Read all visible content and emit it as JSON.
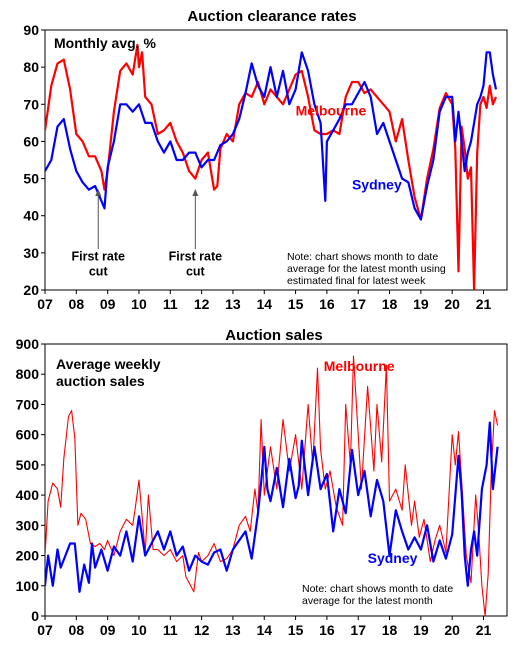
{
  "colors": {
    "melbourne": "#ff0000",
    "sydney": "#0000ff",
    "arrow": "#555555"
  },
  "chart_data": [
    {
      "type": "line",
      "title": "Auction clearance rates",
      "subtitle": "Monthly avg, %",
      "x_tick_labels": [
        "07",
        "08",
        "09",
        "10",
        "11",
        "12",
        "13",
        "14",
        "15",
        "16",
        "17",
        "18",
        "19",
        "20",
        "21"
      ],
      "ylim": [
        20,
        90
      ],
      "y_ticks": [
        20,
        30,
        40,
        50,
        60,
        70,
        80,
        90
      ],
      "grid": false,
      "note": [
        "Note: chart shows month to date",
        "average for the latest month using",
        "estimated final for latest week"
      ],
      "annotations": [
        {
          "lines": [
            "First rate",
            "cut"
          ],
          "x": 2008.7,
          "y": 48
        },
        {
          "lines": [
            "First rate",
            "cut"
          ],
          "x": 2011.8,
          "y": 48
        }
      ],
      "series": [
        {
          "name": "Melbourne",
          "x": [
            2007.0,
            2007.2,
            2007.4,
            2007.6,
            2007.8,
            2008.0,
            2008.2,
            2008.4,
            2008.6,
            2008.8,
            2008.9,
            2009.0,
            2009.2,
            2009.4,
            2009.6,
            2009.8,
            2009.95,
            2010.0,
            2010.1,
            2010.2,
            2010.4,
            2010.6,
            2010.8,
            2011.0,
            2011.2,
            2011.4,
            2011.6,
            2011.8,
            2012.0,
            2012.2,
            2012.4,
            2012.5,
            2012.6,
            2012.8,
            2013.0,
            2013.2,
            2013.4,
            2013.6,
            2013.8,
            2014.0,
            2014.2,
            2014.4,
            2014.6,
            2014.8,
            2015.0,
            2015.2,
            2015.4,
            2015.6,
            2015.8,
            2016.0,
            2016.2,
            2016.4,
            2016.6,
            2016.8,
            2017.0,
            2017.2,
            2017.4,
            2017.6,
            2017.8,
            2018.0,
            2018.2,
            2018.4,
            2018.6,
            2018.8,
            2019.0,
            2019.2,
            2019.4,
            2019.6,
            2019.8,
            2020.0,
            2020.1,
            2020.2,
            2020.3,
            2020.4,
            2020.5,
            2020.6,
            2020.7,
            2020.8,
            2020.9,
            2021.0,
            2021.1,
            2021.2,
            2021.3,
            2021.4
          ],
          "values": [
            63,
            75,
            81,
            82,
            74,
            62,
            60,
            56,
            56,
            52,
            47,
            52,
            68,
            79,
            81,
            78,
            86,
            80,
            84,
            72,
            70,
            62,
            63,
            65,
            60,
            57,
            52,
            50,
            55,
            57,
            47,
            48,
            58,
            62,
            60,
            70,
            73,
            72,
            76,
            70,
            74,
            72,
            70,
            74,
            78,
            79,
            72,
            63,
            62,
            62,
            63,
            62,
            72,
            76,
            76,
            73,
            74,
            72,
            70,
            68,
            60,
            66,
            55,
            45,
            39,
            50,
            58,
            69,
            73,
            70,
            58,
            25,
            64,
            58,
            50,
            53,
            20,
            57,
            70,
            72,
            69,
            75,
            70,
            72
          ]
        },
        {
          "name": "Sydney",
          "x": [
            2007.0,
            2007.2,
            2007.4,
            2007.6,
            2007.8,
            2008.0,
            2008.2,
            2008.4,
            2008.6,
            2008.8,
            2008.9,
            2009.0,
            2009.2,
            2009.4,
            2009.6,
            2009.8,
            2010.0,
            2010.2,
            2010.4,
            2010.6,
            2010.8,
            2011.0,
            2011.2,
            2011.4,
            2011.6,
            2011.8,
            2012.0,
            2012.2,
            2012.4,
            2012.6,
            2012.8,
            2013.0,
            2013.2,
            2013.4,
            2013.6,
            2013.8,
            2014.0,
            2014.2,
            2014.4,
            2014.6,
            2014.8,
            2015.0,
            2015.2,
            2015.4,
            2015.6,
            2015.8,
            2015.95,
            2016.0,
            2016.2,
            2016.4,
            2016.6,
            2016.8,
            2017.0,
            2017.2,
            2017.4,
            2017.6,
            2017.8,
            2018.0,
            2018.2,
            2018.4,
            2018.6,
            2018.8,
            2019.0,
            2019.2,
            2019.4,
            2019.6,
            2019.8,
            2020.0,
            2020.1,
            2020.2,
            2020.3,
            2020.4,
            2020.5,
            2020.6,
            2020.7,
            2020.8,
            2020.9,
            2021.0,
            2021.1,
            2021.2,
            2021.3,
            2021.4
          ],
          "values": [
            52,
            55,
            64,
            66,
            58,
            52,
            49,
            47,
            48,
            44,
            42,
            53,
            60,
            70,
            70,
            68,
            70,
            65,
            65,
            60,
            57,
            60,
            55,
            55,
            57,
            57,
            53,
            55,
            55,
            59,
            60,
            62,
            66,
            73,
            81,
            75,
            72,
            80,
            72,
            79,
            70,
            74,
            84,
            79,
            70,
            65,
            44,
            60,
            63,
            66,
            70,
            70,
            73,
            76,
            72,
            62,
            65,
            60,
            55,
            50,
            49,
            42,
            39,
            48,
            55,
            68,
            72,
            72,
            60,
            68,
            60,
            52,
            57,
            60,
            65,
            70,
            72,
            75,
            84,
            84,
            78,
            74
          ]
        }
      ],
      "series_labels": [
        {
          "name": "Melbourne",
          "x": 2015.0,
          "y": 67
        },
        {
          "name": "Sydney",
          "x": 2016.8,
          "y": 47
        }
      ]
    },
    {
      "type": "line",
      "title": "Auction sales",
      "subtitle_lines": [
        "Average weekly",
        "auction sales"
      ],
      "x_tick_labels": [
        "07",
        "08",
        "09",
        "10",
        "11",
        "12",
        "13",
        "14",
        "15",
        "16",
        "17",
        "18",
        "19",
        "20",
        "21"
      ],
      "ylim": [
        0,
        900
      ],
      "y_ticks": [
        0,
        100,
        200,
        300,
        400,
        500,
        600,
        700,
        800,
        900
      ],
      "grid": false,
      "note": [
        "Note: chart shows month to date",
        "average for the latest month"
      ],
      "series": [
        {
          "name": "Melbourne",
          "x": [
            2007.0,
            2007.1,
            2007.25,
            2007.4,
            2007.5,
            2007.6,
            2007.75,
            2007.85,
            2007.95,
            2008.05,
            2008.15,
            2008.3,
            2008.45,
            2008.6,
            2008.75,
            2008.9,
            2009.0,
            2009.2,
            2009.4,
            2009.6,
            2009.8,
            2009.9,
            2010.0,
            2010.2,
            2010.3,
            2010.45,
            2010.6,
            2010.8,
            2011.0,
            2011.2,
            2011.4,
            2011.5,
            2011.6,
            2011.75,
            2011.9,
            2012.0,
            2012.2,
            2012.4,
            2012.6,
            2012.8,
            2013.0,
            2013.2,
            2013.4,
            2013.55,
            2013.7,
            2013.8,
            2013.9,
            2014.0,
            2014.2,
            2014.4,
            2014.6,
            2014.8,
            2015.0,
            2015.2,
            2015.4,
            2015.55,
            2015.7,
            2015.8,
            2015.95,
            2016.1,
            2016.3,
            2016.5,
            2016.6,
            2016.75,
            2016.85,
            2017.0,
            2017.1,
            2017.3,
            2017.5,
            2017.6,
            2017.75,
            2017.9,
            2018.0,
            2018.2,
            2018.4,
            2018.5,
            2018.7,
            2018.8,
            2018.95,
            2019.1,
            2019.3,
            2019.45,
            2019.6,
            2019.8,
            2020.0,
            2020.1,
            2020.2,
            2020.3,
            2020.45,
            2020.6,
            2020.75,
            2020.85,
            2020.95,
            2021.05,
            2021.15,
            2021.25,
            2021.35,
            2021.45
          ],
          "values": [
            200,
            380,
            440,
            420,
            360,
            520,
            660,
            680,
            590,
            300,
            340,
            320,
            240,
            230,
            240,
            220,
            250,
            200,
            280,
            320,
            300,
            370,
            450,
            210,
            400,
            220,
            220,
            200,
            220,
            180,
            200,
            130,
            110,
            80,
            210,
            180,
            200,
            240,
            180,
            190,
            220,
            300,
            330,
            280,
            420,
            340,
            650,
            400,
            560,
            420,
            650,
            480,
            600,
            420,
            700,
            500,
            820,
            550,
            420,
            480,
            360,
            300,
            700,
            500,
            860,
            600,
            420,
            760,
            480,
            700,
            510,
            830,
            380,
            420,
            350,
            500,
            300,
            380,
            260,
            320,
            180,
            250,
            300,
            210,
            600,
            500,
            610,
            450,
            200,
            110,
            400,
            270,
            100,
            0,
            140,
            480,
            680,
            630
          ]
        },
        {
          "name": "Sydney",
          "x": [
            2007.0,
            2007.1,
            2007.25,
            2007.4,
            2007.5,
            2007.65,
            2007.8,
            2007.95,
            2008.1,
            2008.25,
            2008.4,
            2008.5,
            2008.6,
            2008.8,
            2009.0,
            2009.2,
            2009.4,
            2009.6,
            2009.8,
            2010.0,
            2010.2,
            2010.4,
            2010.6,
            2010.8,
            2011.0,
            2011.2,
            2011.4,
            2011.6,
            2011.8,
            2012.0,
            2012.2,
            2012.4,
            2012.6,
            2012.8,
            2013.0,
            2013.2,
            2013.4,
            2013.6,
            2013.8,
            2013.9,
            2014.0,
            2014.1,
            2014.2,
            2014.4,
            2014.6,
            2014.8,
            2015.0,
            2015.1,
            2015.2,
            2015.4,
            2015.6,
            2015.8,
            2016.0,
            2016.2,
            2016.4,
            2016.6,
            2016.8,
            2017.0,
            2017.2,
            2017.4,
            2017.6,
            2017.8,
            2018.0,
            2018.2,
            2018.4,
            2018.6,
            2018.8,
            2019.0,
            2019.2,
            2019.4,
            2019.6,
            2019.8,
            2020.0,
            2020.2,
            2020.3,
            2020.4,
            2020.5,
            2020.6,
            2020.7,
            2020.8,
            2020.95,
            2021.1,
            2021.2,
            2021.3,
            2021.45
          ],
          "values": [
            100,
            200,
            100,
            220,
            160,
            200,
            240,
            240,
            80,
            170,
            110,
            240,
            160,
            220,
            150,
            230,
            200,
            280,
            180,
            330,
            200,
            240,
            280,
            220,
            280,
            200,
            230,
            150,
            200,
            180,
            170,
            210,
            220,
            150,
            220,
            250,
            280,
            190,
            340,
            440,
            560,
            420,
            380,
            490,
            360,
            520,
            390,
            430,
            580,
            400,
            560,
            420,
            470,
            280,
            420,
            340,
            550,
            400,
            480,
            330,
            450,
            380,
            200,
            350,
            280,
            220,
            260,
            220,
            300,
            180,
            250,
            190,
            270,
            530,
            410,
            200,
            100,
            220,
            280,
            200,
            420,
            500,
            640,
            420,
            560
          ]
        }
      ],
      "series_labels": [
        {
          "name": "Melbourne",
          "x": 2015.9,
          "y": 810
        },
        {
          "name": "Sydney",
          "x": 2017.3,
          "y": 175
        }
      ]
    }
  ]
}
